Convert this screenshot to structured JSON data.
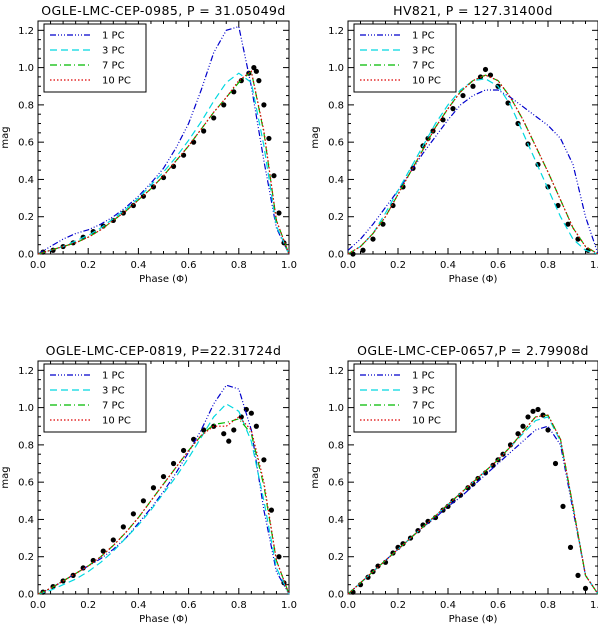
{
  "chart_data": [
    {
      "type": "line",
      "title": "OGLE-LMC-CEP-0985, P = 31.05049d",
      "xlabel": "Phase (Φ)",
      "ylabel": "mag",
      "xlim": [
        0.0,
        1.0
      ],
      "ylim": [
        0.0,
        1.25
      ],
      "xticks": [
        "0.0",
        "0.2",
        "0.4",
        "0.6",
        "0.8",
        "1.0"
      ],
      "yticks": [
        "0.0",
        "0.2",
        "0.4",
        "0.6",
        "0.8",
        "1.0",
        "1.2"
      ],
      "legend_position": "top-left",
      "x": [
        0.0,
        0.05,
        0.1,
        0.15,
        0.2,
        0.25,
        0.3,
        0.35,
        0.4,
        0.45,
        0.5,
        0.55,
        0.6,
        0.65,
        0.7,
        0.75,
        0.8,
        0.85,
        0.9,
        0.95,
        1.0
      ],
      "series": [
        {
          "name": "1 PC",
          "color": "#0000cc",
          "dash": "dashdot3",
          "values": [
            0.0,
            0.04,
            0.08,
            0.11,
            0.13,
            0.16,
            0.2,
            0.25,
            0.31,
            0.38,
            0.46,
            0.57,
            0.7,
            0.88,
            1.08,
            1.2,
            1.22,
            0.9,
            0.5,
            0.14,
            0.0
          ]
        },
        {
          "name": "3 PC",
          "color": "#00d8e0",
          "dash": "dash",
          "values": [
            0.0,
            0.02,
            0.04,
            0.07,
            0.1,
            0.14,
            0.19,
            0.24,
            0.3,
            0.37,
            0.44,
            0.52,
            0.61,
            0.71,
            0.82,
            0.92,
            0.97,
            0.92,
            0.58,
            0.15,
            0.0
          ]
        },
        {
          "name": "7 PC",
          "color": "#00bb00",
          "dash": "dashdot",
          "values": [
            0.0,
            0.02,
            0.04,
            0.06,
            0.09,
            0.13,
            0.18,
            0.23,
            0.29,
            0.35,
            0.42,
            0.5,
            0.58,
            0.67,
            0.76,
            0.84,
            0.92,
            0.98,
            0.65,
            0.18,
            0.0
          ]
        },
        {
          "name": "10 PC",
          "color": "#dd0000",
          "dash": "dot",
          "values": [
            0.0,
            0.02,
            0.04,
            0.06,
            0.09,
            0.13,
            0.18,
            0.23,
            0.29,
            0.35,
            0.42,
            0.5,
            0.58,
            0.67,
            0.76,
            0.84,
            0.93,
            0.98,
            0.66,
            0.18,
            0.0
          ]
        }
      ],
      "observed": [
        [
          0.02,
          0.01
        ],
        [
          0.06,
          0.02
        ],
        [
          0.1,
          0.04
        ],
        [
          0.14,
          0.06
        ],
        [
          0.18,
          0.09
        ],
        [
          0.22,
          0.12
        ],
        [
          0.26,
          0.15
        ],
        [
          0.3,
          0.18
        ],
        [
          0.34,
          0.22
        ],
        [
          0.38,
          0.26
        ],
        [
          0.42,
          0.31
        ],
        [
          0.46,
          0.36
        ],
        [
          0.5,
          0.41
        ],
        [
          0.54,
          0.47
        ],
        [
          0.58,
          0.53
        ],
        [
          0.62,
          0.6
        ],
        [
          0.66,
          0.66
        ],
        [
          0.7,
          0.73
        ],
        [
          0.74,
          0.8
        ],
        [
          0.78,
          0.87
        ],
        [
          0.81,
          0.93
        ],
        [
          0.84,
          0.97
        ],
        [
          0.86,
          1.0
        ],
        [
          0.87,
          0.98
        ],
        [
          0.88,
          0.93
        ],
        [
          0.9,
          0.8
        ],
        [
          0.92,
          0.62
        ],
        [
          0.94,
          0.42
        ],
        [
          0.96,
          0.22
        ],
        [
          0.98,
          0.06
        ]
      ]
    },
    {
      "type": "line",
      "title": "HV821, P = 127.31400d",
      "xlabel": "Phase (Φ)",
      "ylabel": "mag",
      "xlim": [
        0.0,
        1.0
      ],
      "ylim": [
        0.0,
        1.25
      ],
      "xticks": [
        "0.0",
        "0.2",
        "0.4",
        "0.6",
        "0.8",
        "1.0"
      ],
      "yticks": [
        "0.0",
        "0.2",
        "0.4",
        "0.6",
        "0.8",
        "1.0",
        "1.2"
      ],
      "legend_position": "top-left",
      "x": [
        0.0,
        0.05,
        0.1,
        0.15,
        0.2,
        0.25,
        0.3,
        0.35,
        0.4,
        0.45,
        0.5,
        0.55,
        0.6,
        0.65,
        0.7,
        0.75,
        0.8,
        0.85,
        0.9,
        0.95,
        1.0
      ],
      "series": [
        {
          "name": "1 PC",
          "color": "#0000cc",
          "dash": "dashdot3",
          "values": [
            0.02,
            0.08,
            0.16,
            0.25,
            0.34,
            0.44,
            0.54,
            0.63,
            0.72,
            0.8,
            0.85,
            0.88,
            0.88,
            0.84,
            0.79,
            0.74,
            0.69,
            0.62,
            0.48,
            0.2,
            0.0
          ]
        },
        {
          "name": "3 PC",
          "color": "#00d8e0",
          "dash": "dash",
          "values": [
            0.0,
            0.04,
            0.11,
            0.22,
            0.34,
            0.46,
            0.58,
            0.7,
            0.8,
            0.88,
            0.93,
            0.94,
            0.9,
            0.8,
            0.65,
            0.5,
            0.35,
            0.2,
            0.08,
            0.02,
            0.0
          ]
        },
        {
          "name": "7 PC",
          "color": "#00bb00",
          "dash": "dashdot",
          "values": [
            0.0,
            0.04,
            0.11,
            0.2,
            0.32,
            0.44,
            0.56,
            0.68,
            0.78,
            0.87,
            0.93,
            0.96,
            0.93,
            0.84,
            0.72,
            0.58,
            0.44,
            0.29,
            0.14,
            0.04,
            0.0
          ]
        },
        {
          "name": "10 PC",
          "color": "#dd0000",
          "dash": "dot",
          "values": [
            0.0,
            0.04,
            0.11,
            0.2,
            0.32,
            0.44,
            0.56,
            0.68,
            0.78,
            0.87,
            0.93,
            0.96,
            0.93,
            0.84,
            0.72,
            0.58,
            0.44,
            0.29,
            0.14,
            0.04,
            0.0
          ]
        }
      ],
      "observed": [
        [
          0.02,
          0.0
        ],
        [
          0.06,
          0.02
        ],
        [
          0.1,
          0.08
        ],
        [
          0.14,
          0.16
        ],
        [
          0.18,
          0.26
        ],
        [
          0.22,
          0.36
        ],
        [
          0.26,
          0.46
        ],
        [
          0.3,
          0.58
        ],
        [
          0.32,
          0.62
        ],
        [
          0.34,
          0.66
        ],
        [
          0.38,
          0.72
        ],
        [
          0.42,
          0.78
        ],
        [
          0.46,
          0.85
        ],
        [
          0.5,
          0.9
        ],
        [
          0.53,
          0.95
        ],
        [
          0.55,
          0.99
        ],
        [
          0.57,
          0.96
        ],
        [
          0.6,
          0.9
        ],
        [
          0.64,
          0.81
        ],
        [
          0.68,
          0.7
        ],
        [
          0.72,
          0.59
        ],
        [
          0.76,
          0.48
        ],
        [
          0.8,
          0.36
        ],
        [
          0.84,
          0.26
        ],
        [
          0.88,
          0.16
        ],
        [
          0.92,
          0.08
        ],
        [
          0.96,
          0.02
        ]
      ]
    },
    {
      "type": "line",
      "title": "OGLE-LMC-CEP-0819, P=22.31724d",
      "xlabel": "Phase (Φ)",
      "ylabel": "mag",
      "xlim": [
        0.0,
        1.0
      ],
      "ylim": [
        0.0,
        1.25
      ],
      "xticks": [
        "0.0",
        "0.2",
        "0.4",
        "0.6",
        "0.8",
        "1.0"
      ],
      "yticks": [
        "0.0",
        "0.2",
        "0.4",
        "0.6",
        "0.8",
        "1.0",
        "1.2"
      ],
      "legend_position": "top-left",
      "x": [
        0.0,
        0.05,
        0.1,
        0.15,
        0.2,
        0.25,
        0.3,
        0.35,
        0.4,
        0.45,
        0.5,
        0.55,
        0.6,
        0.65,
        0.7,
        0.75,
        0.8,
        0.85,
        0.9,
        0.95,
        1.0
      ],
      "series": [
        {
          "name": "1 PC",
          "color": "#0000cc",
          "dash": "dashdot3",
          "values": [
            0.0,
            0.03,
            0.07,
            0.11,
            0.15,
            0.19,
            0.24,
            0.3,
            0.38,
            0.46,
            0.55,
            0.65,
            0.76,
            0.88,
            1.02,
            1.12,
            1.1,
            0.88,
            0.45,
            0.12,
            0.0
          ]
        },
        {
          "name": "3 PC",
          "color": "#00d8e0",
          "dash": "dash",
          "values": [
            0.0,
            0.02,
            0.05,
            0.08,
            0.12,
            0.17,
            0.23,
            0.3,
            0.37,
            0.45,
            0.54,
            0.63,
            0.73,
            0.84,
            0.95,
            1.02,
            0.98,
            0.82,
            0.5,
            0.14,
            0.0
          ]
        },
        {
          "name": "7 PC",
          "color": "#00bb00",
          "dash": "dashdot",
          "values": [
            0.0,
            0.03,
            0.07,
            0.11,
            0.15,
            0.2,
            0.26,
            0.33,
            0.41,
            0.5,
            0.59,
            0.68,
            0.77,
            0.85,
            0.91,
            0.92,
            0.94,
            0.86,
            0.58,
            0.18,
            0.0
          ]
        },
        {
          "name": "10 PC",
          "color": "#dd0000",
          "dash": "dot",
          "values": [
            0.0,
            0.03,
            0.07,
            0.11,
            0.15,
            0.2,
            0.26,
            0.33,
            0.41,
            0.5,
            0.59,
            0.68,
            0.77,
            0.85,
            0.9,
            0.9,
            0.95,
            0.88,
            0.6,
            0.18,
            0.0
          ]
        }
      ],
      "observed": [
        [
          0.02,
          0.01
        ],
        [
          0.06,
          0.04
        ],
        [
          0.1,
          0.07
        ],
        [
          0.14,
          0.1
        ],
        [
          0.18,
          0.14
        ],
        [
          0.22,
          0.18
        ],
        [
          0.26,
          0.23
        ],
        [
          0.3,
          0.29
        ],
        [
          0.34,
          0.36
        ],
        [
          0.38,
          0.43
        ],
        [
          0.42,
          0.5
        ],
        [
          0.46,
          0.57
        ],
        [
          0.5,
          0.63
        ],
        [
          0.54,
          0.7
        ],
        [
          0.58,
          0.77
        ],
        [
          0.62,
          0.83
        ],
        [
          0.66,
          0.88
        ],
        [
          0.7,
          0.9
        ],
        [
          0.74,
          0.86
        ],
        [
          0.76,
          0.82
        ],
        [
          0.78,
          0.88
        ],
        [
          0.81,
          0.95
        ],
        [
          0.83,
          0.99
        ],
        [
          0.85,
          0.97
        ],
        [
          0.87,
          0.9
        ],
        [
          0.9,
          0.72
        ],
        [
          0.93,
          0.45
        ],
        [
          0.96,
          0.2
        ],
        [
          0.98,
          0.06
        ]
      ]
    },
    {
      "type": "line",
      "title": "OGLE-LMC-CEP-0657,P = 2.79908d",
      "xlabel": "Phase (Φ)",
      "ylabel": "mag",
      "xlim": [
        0.0,
        1.0
      ],
      "ylim": [
        0.0,
        1.25
      ],
      "xticks": [
        "0.0",
        "0.2",
        "0.4",
        "0.6",
        "0.8",
        "1.0"
      ],
      "yticks": [
        "0.0",
        "0.2",
        "0.4",
        "0.6",
        "0.8",
        "1.0",
        "1.2"
      ],
      "legend_position": "top-left",
      "x": [
        0.0,
        0.05,
        0.1,
        0.15,
        0.2,
        0.25,
        0.3,
        0.35,
        0.4,
        0.45,
        0.5,
        0.55,
        0.6,
        0.65,
        0.7,
        0.75,
        0.8,
        0.85,
        0.9,
        0.95,
        1.0
      ],
      "series": [
        {
          "name": "1 PC",
          "color": "#0000cc",
          "dash": "dashdot3",
          "values": [
            0.0,
            0.06,
            0.12,
            0.18,
            0.24,
            0.3,
            0.36,
            0.41,
            0.47,
            0.52,
            0.58,
            0.64,
            0.7,
            0.76,
            0.82,
            0.88,
            0.9,
            0.8,
            0.45,
            0.1,
            0.0
          ]
        },
        {
          "name": "3 PC",
          "color": "#00d8e0",
          "dash": "dash",
          "values": [
            0.0,
            0.06,
            0.12,
            0.18,
            0.24,
            0.3,
            0.36,
            0.42,
            0.48,
            0.54,
            0.6,
            0.66,
            0.72,
            0.79,
            0.86,
            0.93,
            0.95,
            0.82,
            0.47,
            0.1,
            0.0
          ]
        },
        {
          "name": "7 PC",
          "color": "#00bb00",
          "dash": "dashdot",
          "values": [
            0.0,
            0.06,
            0.12,
            0.18,
            0.24,
            0.3,
            0.36,
            0.42,
            0.48,
            0.54,
            0.6,
            0.66,
            0.72,
            0.79,
            0.87,
            0.95,
            0.96,
            0.83,
            0.47,
            0.1,
            0.0
          ]
        },
        {
          "name": "10 PC",
          "color": "#dd0000",
          "dash": "dot",
          "values": [
            0.0,
            0.06,
            0.12,
            0.18,
            0.24,
            0.3,
            0.36,
            0.42,
            0.48,
            0.54,
            0.6,
            0.66,
            0.72,
            0.79,
            0.87,
            0.95,
            0.96,
            0.83,
            0.47,
            0.1,
            0.0
          ]
        }
      ],
      "observed": [
        [
          0.02,
          0.01
        ],
        [
          0.05,
          0.05
        ],
        [
          0.08,
          0.09
        ],
        [
          0.1,
          0.12
        ],
        [
          0.12,
          0.15
        ],
        [
          0.15,
          0.17
        ],
        [
          0.18,
          0.22
        ],
        [
          0.2,
          0.25
        ],
        [
          0.22,
          0.27
        ],
        [
          0.25,
          0.3
        ],
        [
          0.28,
          0.34
        ],
        [
          0.3,
          0.37
        ],
        [
          0.32,
          0.39
        ],
        [
          0.35,
          0.41
        ],
        [
          0.38,
          0.45
        ],
        [
          0.4,
          0.47
        ],
        [
          0.42,
          0.5
        ],
        [
          0.45,
          0.53
        ],
        [
          0.48,
          0.57
        ],
        [
          0.5,
          0.59
        ],
        [
          0.52,
          0.62
        ],
        [
          0.55,
          0.65
        ],
        [
          0.58,
          0.69
        ],
        [
          0.6,
          0.72
        ],
        [
          0.62,
          0.75
        ],
        [
          0.65,
          0.8
        ],
        [
          0.68,
          0.86
        ],
        [
          0.7,
          0.9
        ],
        [
          0.72,
          0.95
        ],
        [
          0.74,
          0.98
        ],
        [
          0.76,
          0.99
        ],
        [
          0.78,
          0.96
        ],
        [
          0.8,
          0.88
        ],
        [
          0.83,
          0.7
        ],
        [
          0.86,
          0.47
        ],
        [
          0.89,
          0.25
        ],
        [
          0.92,
          0.1
        ],
        [
          0.95,
          0.03
        ]
      ]
    }
  ]
}
